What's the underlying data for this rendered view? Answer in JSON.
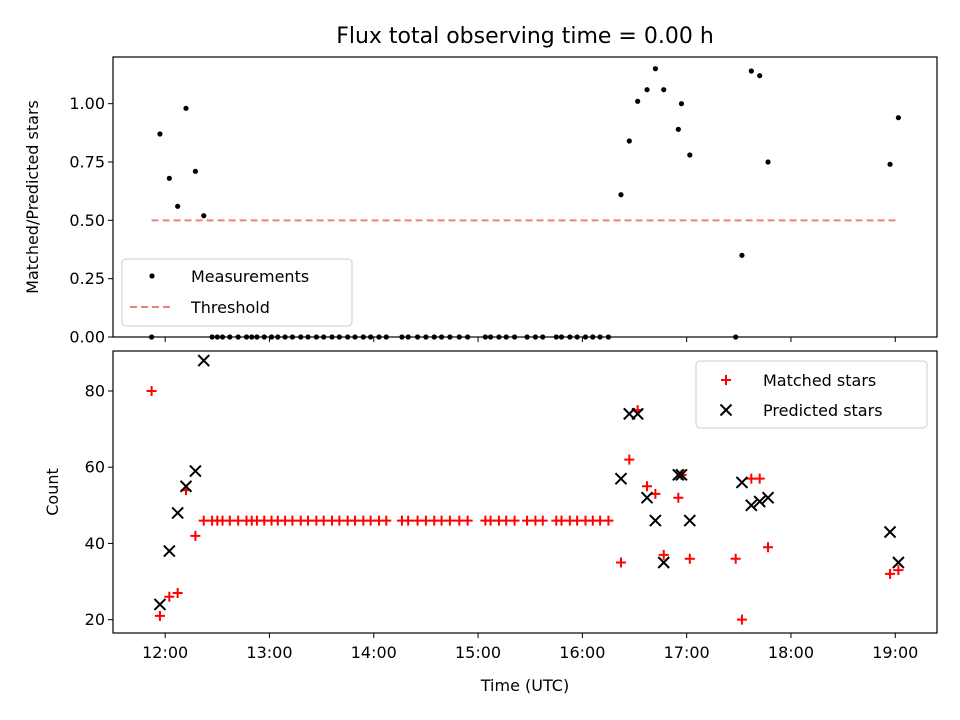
{
  "figure": {
    "title": "Flux total observing time = 0.00 h",
    "xlabel": "Time (UTC)"
  },
  "chart_data": [
    {
      "type": "scatter",
      "title": "Flux total observing time = 0.00 h",
      "ylabel": "Matched/Predicted stars",
      "xlabel": "",
      "x_unit": "hours UTC",
      "xlim": [
        11.5,
        19.4
      ],
      "ylim": [
        0,
        1.2
      ],
      "yticks": [
        0.0,
        0.25,
        0.5,
        0.75,
        1.0
      ],
      "ytick_labels": [
        "0.00",
        "0.25",
        "0.50",
        "0.75",
        "1.00"
      ],
      "legend": {
        "position": "lower-left"
      },
      "threshold": {
        "name": "Threshold",
        "value": 0.5,
        "x": [
          11.87,
          19.03
        ],
        "color": "#f08080",
        "style": "dashed"
      },
      "series": [
        {
          "name": "Measurements",
          "color": "#000000",
          "marker": "dot",
          "points": [
            [
              11.87,
              0.0
            ],
            [
              11.95,
              0.87
            ],
            [
              12.04,
              0.68
            ],
            [
              12.12,
              0.56
            ],
            [
              12.2,
              0.98
            ],
            [
              12.29,
              0.71
            ],
            [
              12.37,
              0.52
            ],
            [
              12.45,
              0.0
            ],
            [
              12.5,
              0.0
            ],
            [
              12.55,
              0.0
            ],
            [
              12.62,
              0.0
            ],
            [
              12.7,
              0.0
            ],
            [
              12.78,
              0.0
            ],
            [
              12.83,
              0.0
            ],
            [
              12.88,
              0.0
            ],
            [
              12.95,
              0.0
            ],
            [
              13.02,
              0.0
            ],
            [
              13.08,
              0.0
            ],
            [
              13.15,
              0.0
            ],
            [
              13.22,
              0.0
            ],
            [
              13.3,
              0.0
            ],
            [
              13.37,
              0.0
            ],
            [
              13.45,
              0.0
            ],
            [
              13.52,
              0.0
            ],
            [
              13.6,
              0.0
            ],
            [
              13.67,
              0.0
            ],
            [
              13.75,
              0.0
            ],
            [
              13.82,
              0.0
            ],
            [
              13.9,
              0.0
            ],
            [
              13.97,
              0.0
            ],
            [
              14.05,
              0.0
            ],
            [
              14.12,
              0.0
            ],
            [
              14.27,
              0.0
            ],
            [
              14.33,
              0.0
            ],
            [
              14.42,
              0.0
            ],
            [
              14.5,
              0.0
            ],
            [
              14.58,
              0.0
            ],
            [
              14.65,
              0.0
            ],
            [
              14.73,
              0.0
            ],
            [
              14.82,
              0.0
            ],
            [
              14.9,
              0.0
            ],
            [
              15.07,
              0.0
            ],
            [
              15.12,
              0.0
            ],
            [
              15.2,
              0.0
            ],
            [
              15.27,
              0.0
            ],
            [
              15.35,
              0.0
            ],
            [
              15.47,
              0.0
            ],
            [
              15.55,
              0.0
            ],
            [
              15.62,
              0.0
            ],
            [
              15.75,
              0.0
            ],
            [
              15.8,
              0.0
            ],
            [
              15.88,
              0.0
            ],
            [
              15.95,
              0.0
            ],
            [
              16.03,
              0.0
            ],
            [
              16.1,
              0.0
            ],
            [
              16.17,
              0.0
            ],
            [
              16.25,
              0.0
            ],
            [
              16.37,
              0.61
            ],
            [
              16.45,
              0.84
            ],
            [
              16.53,
              1.01
            ],
            [
              16.62,
              1.06
            ],
            [
              16.7,
              1.15
            ],
            [
              16.78,
              1.06
            ],
            [
              16.92,
              0.89
            ],
            [
              16.95,
              1.0
            ],
            [
              17.03,
              0.78
            ],
            [
              17.47,
              0.0
            ],
            [
              17.53,
              0.35
            ],
            [
              17.62,
              1.14
            ],
            [
              17.7,
              1.12
            ],
            [
              17.78,
              0.75
            ],
            [
              18.95,
              0.74
            ],
            [
              19.03,
              0.94
            ]
          ]
        }
      ]
    },
    {
      "type": "scatter",
      "title": "",
      "ylabel": "Count",
      "xlabel": "Time (UTC)",
      "x_unit": "hours UTC",
      "xlim": [
        11.5,
        19.4
      ],
      "ylim": [
        16.5,
        90.5
      ],
      "yticks": [
        20,
        40,
        60,
        80
      ],
      "ytick_labels": [
        "20",
        "40",
        "60",
        "80"
      ],
      "xticks": [
        12,
        13,
        14,
        15,
        16,
        17,
        18,
        19
      ],
      "xtick_labels": [
        "12:00",
        "13:00",
        "14:00",
        "15:00",
        "16:00",
        "17:00",
        "18:00",
        "19:00"
      ],
      "legend": {
        "position": "top-right"
      },
      "series": [
        {
          "name": "Matched stars",
          "color": "#ff0000",
          "marker": "plus",
          "points": [
            [
              11.87,
              80
            ],
            [
              11.95,
              21
            ],
            [
              12.04,
              26
            ],
            [
              12.12,
              27
            ],
            [
              12.2,
              54
            ],
            [
              12.29,
              42
            ],
            [
              12.37,
              46
            ],
            [
              12.45,
              46
            ],
            [
              12.5,
              46
            ],
            [
              12.55,
              46
            ],
            [
              12.62,
              46
            ],
            [
              12.7,
              46
            ],
            [
              12.78,
              46
            ],
            [
              12.83,
              46
            ],
            [
              12.88,
              46
            ],
            [
              12.95,
              46
            ],
            [
              13.02,
              46
            ],
            [
              13.08,
              46
            ],
            [
              13.15,
              46
            ],
            [
              13.22,
              46
            ],
            [
              13.3,
              46
            ],
            [
              13.37,
              46
            ],
            [
              13.45,
              46
            ],
            [
              13.52,
              46
            ],
            [
              13.6,
              46
            ],
            [
              13.67,
              46
            ],
            [
              13.75,
              46
            ],
            [
              13.82,
              46
            ],
            [
              13.9,
              46
            ],
            [
              13.97,
              46
            ],
            [
              14.05,
              46
            ],
            [
              14.12,
              46
            ],
            [
              14.27,
              46
            ],
            [
              14.33,
              46
            ],
            [
              14.42,
              46
            ],
            [
              14.5,
              46
            ],
            [
              14.58,
              46
            ],
            [
              14.65,
              46
            ],
            [
              14.73,
              46
            ],
            [
              14.82,
              46
            ],
            [
              14.9,
              46
            ],
            [
              15.07,
              46
            ],
            [
              15.12,
              46
            ],
            [
              15.2,
              46
            ],
            [
              15.27,
              46
            ],
            [
              15.35,
              46
            ],
            [
              15.47,
              46
            ],
            [
              15.55,
              46
            ],
            [
              15.62,
              46
            ],
            [
              15.75,
              46
            ],
            [
              15.8,
              46
            ],
            [
              15.88,
              46
            ],
            [
              15.95,
              46
            ],
            [
              16.03,
              46
            ],
            [
              16.1,
              46
            ],
            [
              16.17,
              46
            ],
            [
              16.25,
              46
            ],
            [
              16.37,
              35
            ],
            [
              16.45,
              62
            ],
            [
              16.53,
              75
            ],
            [
              16.62,
              55
            ],
            [
              16.7,
              53
            ],
            [
              16.78,
              37
            ],
            [
              16.92,
              52
            ],
            [
              16.95,
              58
            ],
            [
              17.03,
              36
            ],
            [
              17.47,
              36
            ],
            [
              17.53,
              20
            ],
            [
              17.62,
              57
            ],
            [
              17.7,
              57
            ],
            [
              17.78,
              39
            ],
            [
              18.95,
              32
            ],
            [
              19.03,
              33
            ]
          ]
        },
        {
          "name": "Predicted stars",
          "color": "#000000",
          "marker": "x",
          "points": [
            [
              11.95,
              24
            ],
            [
              12.04,
              38
            ],
            [
              12.12,
              48
            ],
            [
              12.2,
              55
            ],
            [
              12.29,
              59
            ],
            [
              12.37,
              88
            ],
            [
              16.37,
              57
            ],
            [
              16.45,
              74
            ],
            [
              16.53,
              74
            ],
            [
              16.62,
              52
            ],
            [
              16.7,
              46
            ],
            [
              16.78,
              35
            ],
            [
              16.92,
              58
            ],
            [
              16.95,
              58
            ],
            [
              17.03,
              46
            ],
            [
              17.53,
              56
            ],
            [
              17.62,
              50
            ],
            [
              17.7,
              51
            ],
            [
              17.78,
              52
            ],
            [
              18.95,
              43
            ],
            [
              19.03,
              35
            ]
          ]
        }
      ]
    }
  ]
}
